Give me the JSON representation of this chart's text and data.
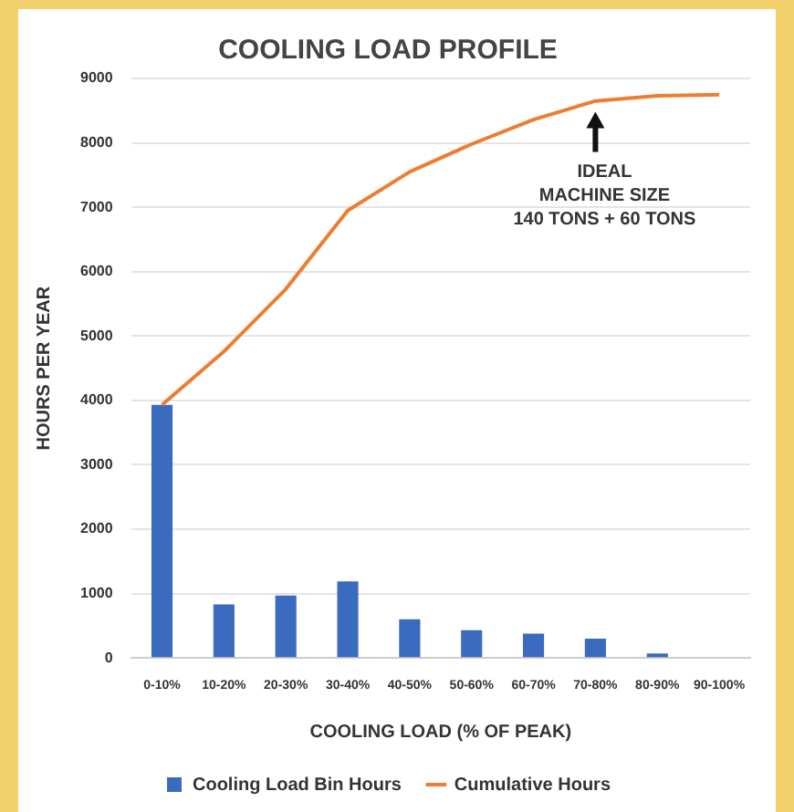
{
  "chart_data": {
    "type": "bar",
    "title": "COOLING LOAD PROFILE",
    "xlabel": "COOLING LOAD (% OF PEAK)",
    "ylabel": "HOURS PER YEAR",
    "categories": [
      "0-10%",
      "10-20%",
      "20-30%",
      "30-40%",
      "40-50%",
      "50-60%",
      "60-70%",
      "70-80%",
      "80-90%",
      "90-100%"
    ],
    "series": [
      {
        "name": "Cooling Load Bin Hours",
        "color": "#3a6bbf",
        "values": [
          3930,
          830,
          970,
          1190,
          600,
          430,
          380,
          300,
          70,
          0
        ]
      },
      {
        "name": "Cumulative Hours",
        "type": "line",
        "color": "#ed7d31",
        "values": [
          3930,
          4760,
          5730,
          6950,
          7550,
          7980,
          8360,
          8650,
          8730,
          8750
        ]
      }
    ],
    "ylim": [
      0,
      9000
    ],
    "yticks": [
      0,
      1000,
      2000,
      3000,
      4000,
      5000,
      6000,
      7000,
      8000,
      9000
    ],
    "grid": "y",
    "legend": "bottom",
    "marker": "none",
    "line_style": "solid",
    "annotations": [
      "IDEAL\nMACHINE SIZE\n140 TONS + 60 TONS"
    ]
  }
}
